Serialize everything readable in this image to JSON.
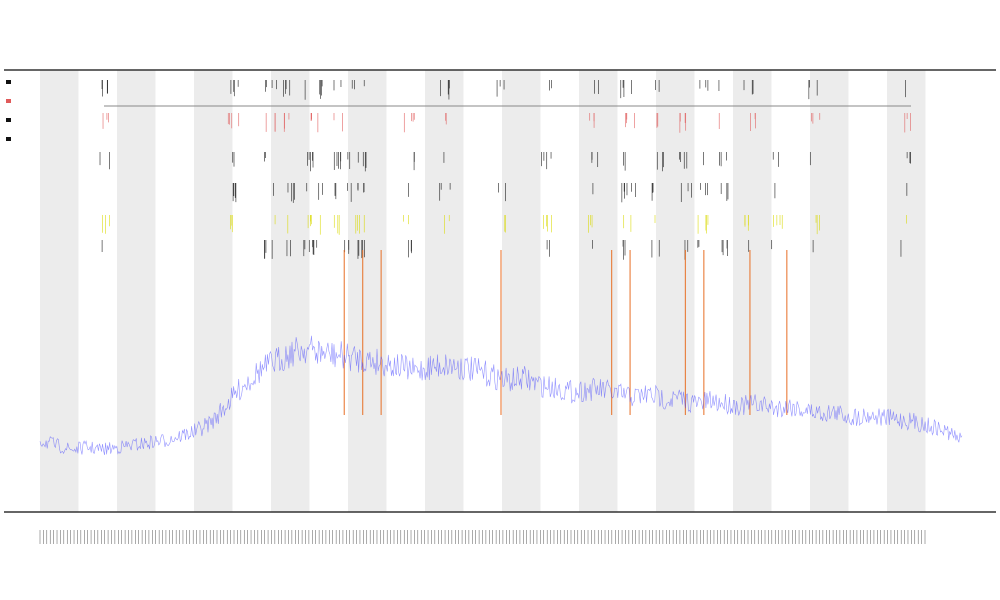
{
  "chart_data": {
    "type": "line",
    "title": "",
    "subtitle_lines": [
      "",
      ""
    ],
    "xlabel": "",
    "ylabel": "",
    "colors": {
      "band": "#ececec",
      "signal": "#3a3aff",
      "spike": "#e8722a",
      "event_black": "#111111",
      "event_red": "#e05a5a",
      "event_yellow": "#d9d900",
      "axis": "#333333",
      "separator": "#888888"
    },
    "band_count": 12,
    "series": [
      {
        "values": [
          0.12,
          0.1,
          0.08,
          0.09,
          0.08,
          0.09,
          0.1,
          0.11,
          0.12,
          0.14,
          0.16,
          0.2,
          0.28,
          0.36,
          0.42,
          0.46,
          0.5,
          0.52,
          0.5,
          0.49,
          0.48,
          0.47,
          0.46,
          0.44,
          0.42,
          0.44,
          0.45,
          0.44,
          0.42,
          0.4,
          0.38,
          0.39,
          0.36,
          0.35,
          0.33,
          0.34,
          0.34,
          0.32,
          0.31,
          0.32,
          0.3,
          0.3,
          0.28,
          0.29,
          0.28,
          0.27,
          0.28,
          0.26,
          0.27,
          0.25,
          0.24,
          0.24,
          0.22,
          0.23,
          0.22,
          0.21,
          0.2,
          0.18,
          0.16,
          0.12
        ]
      }
    ],
    "spikes": [
      0.33,
      0.35,
      0.37,
      0.5,
      0.62,
      0.64,
      0.7,
      0.72,
      0.77,
      0.81
    ],
    "event_rows": 6,
    "events": [
      0.07,
      0.21,
      0.25,
      0.27,
      0.29,
      0.3,
      0.32,
      0.33,
      0.34,
      0.35,
      0.4,
      0.44,
      0.5,
      0.55,
      0.6,
      0.63,
      0.64,
      0.67,
      0.7,
      0.72,
      0.74,
      0.77,
      0.8,
      0.84,
      0.94
    ],
    "legend": [
      "",
      "",
      "",
      ""
    ]
  }
}
